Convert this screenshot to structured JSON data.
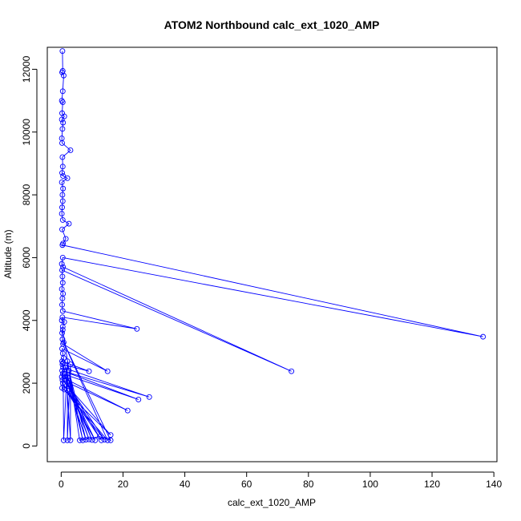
{
  "chart_data": {
    "type": "line",
    "title": "ATOM2 Northbound calc_ext_1020_AMP",
    "xlabel": "calc_ext_1020_AMP",
    "ylabel": "Altitude (m)",
    "xlim": [
      -4.5,
      141
    ],
    "ylim": [
      -500,
      12700
    ],
    "x_ticks": [
      0,
      20,
      40,
      60,
      80,
      100,
      120,
      140
    ],
    "y_ticks": [
      0,
      2000,
      4000,
      6000,
      8000,
      10000,
      12000
    ],
    "grid": false,
    "legend": "none",
    "marker": "open-circle",
    "series": [
      {
        "color": "#0000ff",
        "points": [
          [
            0.4,
            12580
          ],
          [
            0.5,
            11950
          ],
          [
            0.3,
            11900
          ],
          [
            0.8,
            11800
          ],
          [
            0.5,
            11300
          ],
          [
            0.2,
            11000
          ],
          [
            0.5,
            10950
          ],
          [
            0.3,
            10600
          ],
          [
            1.0,
            10500
          ],
          [
            0.2,
            10400
          ],
          [
            0.6,
            10300
          ],
          [
            0.4,
            10100
          ],
          [
            0.2,
            9800
          ],
          [
            0.3,
            9650
          ],
          [
            3.0,
            9420
          ],
          [
            0.4,
            9200
          ],
          [
            0.5,
            8900
          ],
          [
            0.3,
            8700
          ],
          [
            0.6,
            8600
          ],
          [
            2.0,
            8530
          ],
          [
            0.2,
            8400
          ],
          [
            0.6,
            8200
          ],
          [
            0.4,
            8000
          ],
          [
            0.5,
            7800
          ],
          [
            0.3,
            7600
          ],
          [
            0.2,
            7400
          ],
          [
            0.5,
            7200
          ],
          [
            2.5,
            7080
          ],
          [
            0.3,
            6900
          ],
          [
            1.5,
            6600
          ],
          [
            0.6,
            6450
          ],
          [
            0.4,
            6400
          ],
          [
            136.5,
            3480
          ],
          [
            0.5,
            6000
          ],
          [
            0.2,
            5800
          ],
          [
            0.6,
            5700
          ],
          [
            74.5,
            2380
          ],
          [
            0.3,
            5600
          ],
          [
            0.4,
            5400
          ],
          [
            0.5,
            5200
          ],
          [
            0.2,
            5000
          ],
          [
            0.6,
            4850
          ],
          [
            0.4,
            4700
          ],
          [
            0.3,
            4500
          ],
          [
            0.5,
            4300
          ],
          [
            24.5,
            3730
          ],
          [
            0.4,
            4100
          ],
          [
            0.2,
            4000
          ],
          [
            1.0,
            3950
          ],
          [
            0.5,
            3800
          ],
          [
            0.3,
            3600
          ],
          [
            0.4,
            3400
          ],
          [
            0.6,
            3250
          ],
          [
            15.0,
            2380
          ],
          [
            0.3,
            3100
          ],
          [
            0.5,
            2950
          ],
          [
            0.8,
            2800
          ],
          [
            0.3,
            2700
          ],
          [
            9.0,
            2380
          ],
          [
            0.4,
            2600
          ],
          [
            0.6,
            2500
          ],
          [
            28.5,
            1560
          ],
          [
            0.3,
            2400
          ],
          [
            25.0,
            1480
          ],
          [
            0.5,
            2300
          ],
          [
            0.2,
            2200
          ],
          [
            21.5,
            1130
          ],
          [
            0.4,
            2100
          ],
          [
            16.0,
            350
          ],
          [
            0.3,
            1850
          ],
          [
            0.6,
            2650
          ],
          [
            0.8,
            180
          ],
          [
            2.0,
            2700
          ],
          [
            2.0,
            180
          ],
          [
            3.0,
            2600
          ],
          [
            3.0,
            180
          ],
          [
            1.5,
            2500
          ],
          [
            7.0,
            180
          ],
          [
            2.5,
            2400
          ],
          [
            8.0,
            200
          ],
          [
            1.0,
            2300
          ],
          [
            9.0,
            210
          ],
          [
            2.0,
            2200
          ],
          [
            10.0,
            190
          ],
          [
            1.5,
            2100
          ],
          [
            11.0,
            180
          ],
          [
            0.5,
            2000
          ],
          [
            13.0,
            180
          ],
          [
            2.5,
            1900
          ],
          [
            14.0,
            200
          ],
          [
            1.0,
            1800
          ],
          [
            15.0,
            180
          ],
          [
            0.8,
            3300
          ],
          [
            16.0,
            180
          ],
          [
            12.5,
            300
          ],
          [
            6.0,
            180
          ],
          [
            0.5,
            3700
          ]
        ]
      }
    ]
  }
}
